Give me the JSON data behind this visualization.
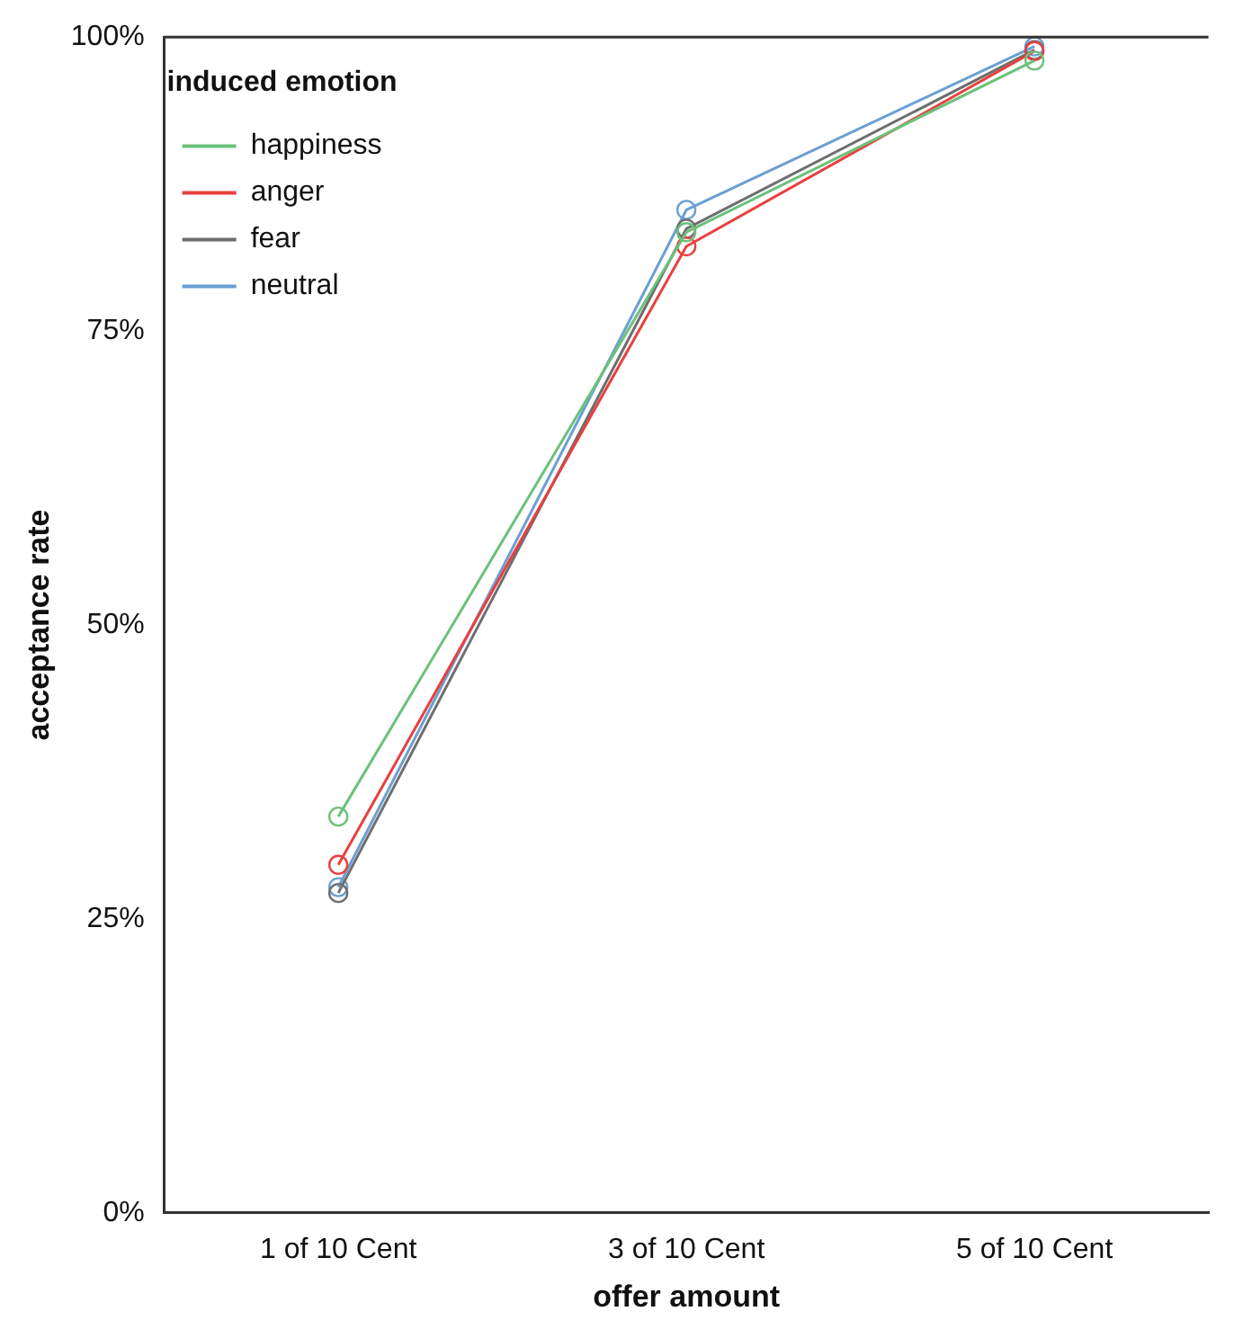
{
  "chart_data": {
    "type": "line",
    "xlabel": "offer amount",
    "ylabel": "acceptance rate",
    "legend_title": "induced emotion",
    "categories": [
      "1 of 10 Cent",
      "3 of 10 Cent",
      "5 of 10 Cent"
    ],
    "series": [
      {
        "name": "happiness",
        "color": "#6cc17a",
        "values": [
          33.7,
          83.4,
          98.0
        ]
      },
      {
        "name": "anger",
        "color": "#e8403f",
        "values": [
          29.6,
          82.2,
          98.8
        ]
      },
      {
        "name": "fear",
        "color": "#6e6e6e",
        "values": [
          27.2,
          83.7,
          98.9
        ]
      },
      {
        "name": "neutral",
        "color": "#6a9fd4",
        "values": [
          27.7,
          85.3,
          99.2
        ]
      }
    ],
    "ylim": [
      0,
      100
    ],
    "yticks": [
      {
        "value": 0,
        "label": "0%"
      },
      {
        "value": 25,
        "label": "25%"
      },
      {
        "value": 50,
        "label": "50%"
      },
      {
        "value": 75,
        "label": "75%"
      },
      {
        "value": 100,
        "label": "100%"
      }
    ],
    "grid": false,
    "legend": "top left",
    "marker": "circle",
    "line_style": "solid"
  }
}
